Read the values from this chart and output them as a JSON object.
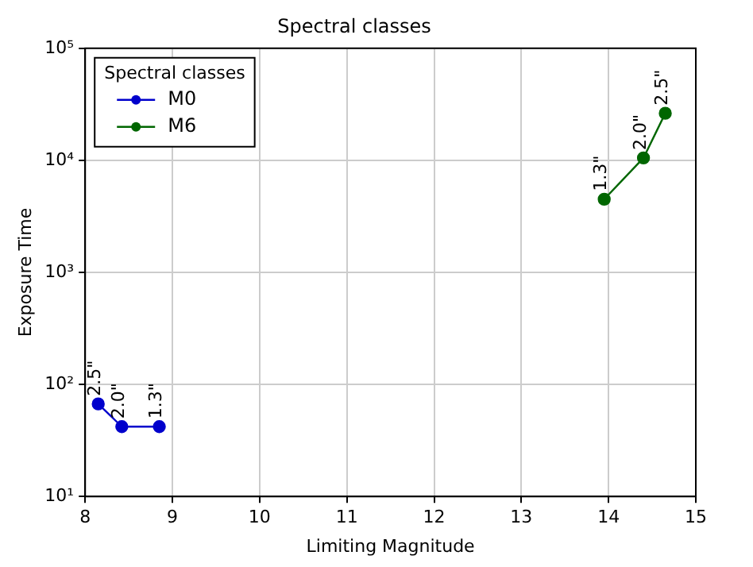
{
  "chart_data": {
    "type": "line",
    "title": "Spectral classes",
    "xlabel": "Limiting Magnitude",
    "ylabel": "Exposure Time",
    "legend_title": "Spectral classes",
    "series": [
      {
        "name": "M0",
        "color": "#0000cc",
        "x": [
          8.15,
          8.42,
          8.85
        ],
        "values": [
          67,
          42,
          42
        ]
      },
      {
        "name": "M6",
        "color": "#006600",
        "x": [
          13.95,
          14.4,
          14.65
        ],
        "values": [
          4500,
          10500,
          26300
        ]
      }
    ],
    "xlim": [
      8,
      15
    ],
    "xticks": [
      8,
      9,
      10,
      11,
      12,
      13,
      14,
      15
    ],
    "ylim": [
      10,
      100000
    ],
    "yticks": [
      {
        "value": 10,
        "label": "10¹"
      },
      {
        "value": 100,
        "label": "10²"
      },
      {
        "value": 1000,
        "label": "10³"
      },
      {
        "value": 10000,
        "label": "10⁴"
      },
      {
        "value": 100000,
        "label": "10⁵"
      }
    ],
    "log": "y",
    "grid": true,
    "legend": "top left",
    "marker": "circle",
    "line_style": "solid",
    "annotations": [
      {
        "text": "2.5\"",
        "x": 8.15,
        "y": 67
      },
      {
        "text": "2.0\"",
        "x": 8.42,
        "y": 42
      },
      {
        "text": "1.3\"",
        "x": 8.85,
        "y": 42
      },
      {
        "text": "1.3\"",
        "x": 13.95,
        "y": 4500
      },
      {
        "text": "2.0\"",
        "x": 14.4,
        "y": 10500
      },
      {
        "text": "2.5\"",
        "x": 14.65,
        "y": 26300
      }
    ]
  }
}
